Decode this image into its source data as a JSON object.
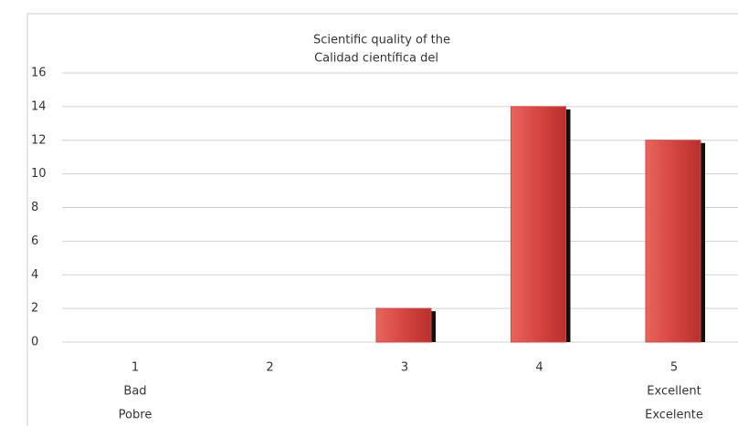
{
  "chart_data": {
    "type": "bar",
    "title": [
      "Scientific quality of the",
      "Calidad científica del"
    ],
    "categories": [
      [
        "1",
        "Bad",
        "Pobre"
      ],
      [
        "2"
      ],
      [
        "3"
      ],
      [
        "4"
      ],
      [
        "5",
        "Excellent",
        "Excelente"
      ]
    ],
    "values": [
      0,
      0,
      2,
      14,
      12
    ],
    "color": "#d64541",
    "ylim": [
      0,
      16
    ],
    "yticks": [
      0,
      2,
      4,
      6,
      8,
      10,
      12,
      14,
      16
    ],
    "grid": true
  }
}
